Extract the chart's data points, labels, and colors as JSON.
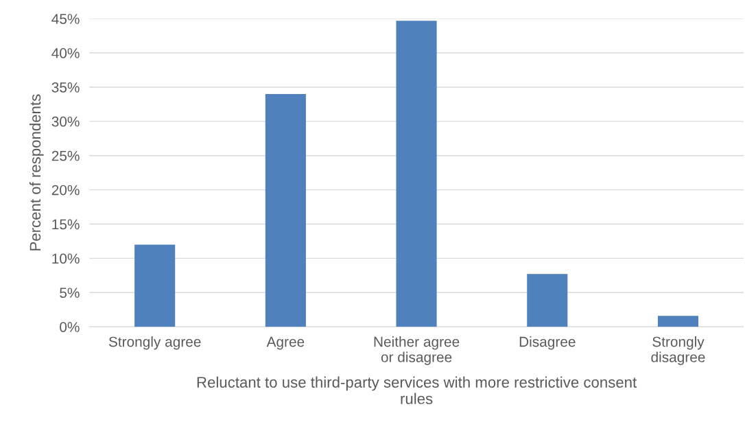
{
  "chart_data": {
    "type": "bar",
    "categories": [
      "Strongly agree",
      "Agree",
      "Neither agree\nor disagree",
      "Disagree",
      "Strongly\ndisagree"
    ],
    "values": [
      12.0,
      34.0,
      44.7,
      7.7,
      1.6
    ],
    "color": "#4f81bd",
    "xlabel": "Reluctant to use third-party services with more restrictive consent\nrules",
    "ylabel": "Percent of respondents",
    "ylim": [
      0,
      45
    ],
    "yticks": [
      {
        "value": 0,
        "label": "0%"
      },
      {
        "value": 5,
        "label": "5%"
      },
      {
        "value": 10,
        "label": "10%"
      },
      {
        "value": 15,
        "label": "15%"
      },
      {
        "value": 20,
        "label": "20%"
      },
      {
        "value": 25,
        "label": "25%"
      },
      {
        "value": 30,
        "label": "30%"
      },
      {
        "value": 35,
        "label": "35%"
      },
      {
        "value": 40,
        "label": "40%"
      },
      {
        "value": 45,
        "label": "45%"
      }
    ],
    "grid": "y",
    "legend": false
  }
}
